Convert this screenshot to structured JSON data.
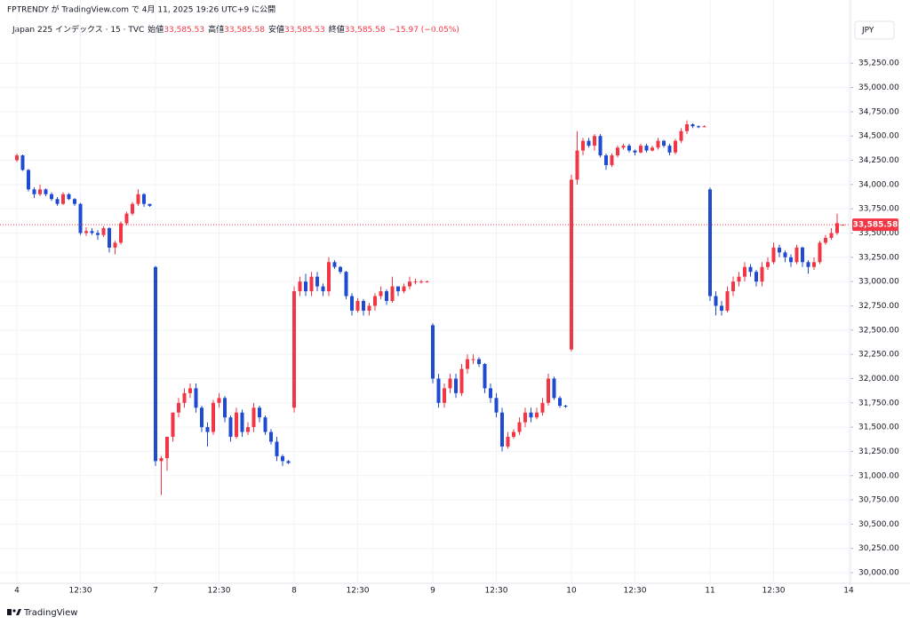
{
  "header": {
    "published": "FPTRENDY が TradingView.com で 4月 11, 2025 19:26 UTC+9 に公開",
    "brand": "TradingView"
  },
  "chart_data": {
    "type": "candlestick",
    "title": "Japan 225 インデックス · 15 · TVC",
    "ohlc": [
      {
        "label": "始値",
        "value": "33,585.53"
      },
      {
        "label": "高値",
        "value": "33,585.58"
      },
      {
        "label": "安値",
        "value": "33,585.53"
      },
      {
        "label": "終値",
        "value": "33,585.58"
      }
    ],
    "change": "−15.97 (−0.05%)",
    "currency": "JPY",
    "up_color": "#f23645",
    "down_color": "#1e4bd2",
    "grid": true,
    "price_line": {
      "value": 33585.58,
      "label": "33,585.58"
    },
    "categories": [
      "4",
      null,
      null,
      null,
      null,
      null,
      null,
      null,
      null,
      null,
      null,
      "12:30",
      null,
      null,
      null,
      null,
      null,
      null,
      null,
      null,
      null,
      null,
      null,
      null,
      "7",
      null,
      null,
      null,
      null,
      null,
      null,
      null,
      null,
      null,
      null,
      "12:30",
      null,
      null,
      null,
      null,
      null,
      null,
      null,
      null,
      null,
      null,
      null,
      null,
      "8",
      null,
      null,
      null,
      null,
      null,
      null,
      null,
      null,
      null,
      null,
      "12:30",
      null,
      null,
      null,
      null,
      null,
      null,
      null,
      null,
      null,
      null,
      null,
      null,
      "9",
      null,
      null,
      null,
      null,
      null,
      null,
      null,
      null,
      null,
      null,
      "12:30",
      null,
      null,
      null,
      null,
      null,
      null,
      null,
      null,
      null,
      null,
      null,
      null,
      "10",
      null,
      null,
      null,
      null,
      null,
      null,
      null,
      null,
      null,
      null,
      "12:30",
      null,
      null,
      null,
      null,
      null,
      null,
      null,
      null,
      null,
      null,
      null,
      null,
      "11",
      null,
      null,
      null,
      null,
      null,
      null,
      null,
      null,
      null,
      null,
      "12:30",
      null,
      null,
      null,
      null,
      null,
      null,
      null,
      null,
      null,
      null,
      null,
      null,
      "14"
    ],
    "open": [
      34250,
      34300,
      34150,
      33950,
      33900,
      33950,
      33900,
      33850,
      33800,
      33900,
      33850,
      33800,
      33500,
      33520,
      33500,
      33480,
      33550,
      33350,
      33400,
      33600,
      33700,
      33800,
      33900,
      33800,
      33150,
      31150,
      31180,
      31400,
      31650,
      31750,
      31850,
      31900,
      31700,
      31500,
      31450,
      31750,
      31800,
      31600,
      31400,
      31650,
      31450,
      31500,
      31700,
      31600,
      31450,
      31350,
      31200,
      31150,
      31700,
      32900,
      33000,
      32900,
      33050,
      32950,
      32900,
      33200,
      33150,
      33100,
      32850,
      32700,
      32800,
      32700,
      32750,
      32850,
      32900,
      32800,
      32950,
      32900,
      32950,
      33000,
      33000,
      33000,
      32550,
      32000,
      31750,
      31900,
      32000,
      31850,
      32100,
      32200,
      32200,
      32150,
      31900,
      31800,
      31650,
      31300,
      31400,
      31450,
      31550,
      31650,
      31600,
      31650,
      31750,
      32000,
      31800,
      31720,
      32300,
      34050,
      34350,
      34450,
      34400,
      34500,
      34300,
      34200,
      34300,
      34380,
      34400,
      34350,
      34330,
      34400,
      34350,
      34380,
      34450,
      34400,
      34330,
      34450,
      34550,
      34620,
      34600,
      34590,
      33950,
      32850,
      32750,
      32700,
      32900,
      33000,
      33050,
      33150,
      33100,
      33000,
      33150,
      33200,
      33350,
      33300,
      33250,
      33200,
      33350,
      33200,
      33150,
      33200,
      33400,
      33450,
      33500,
      33585.53,
      null
    ],
    "high": [
      34320,
      34310,
      34160,
      33970,
      34000,
      33960,
      33920,
      33870,
      33920,
      33910,
      33860,
      33810,
      33560,
      33550,
      33530,
      33570,
      33560,
      33420,
      33620,
      33720,
      33820,
      33950,
      33910,
      33800,
      33160,
      31200,
      31400,
      31650,
      31800,
      31900,
      31950,
      31950,
      31720,
      31550,
      31780,
      31850,
      31820,
      31620,
      31700,
      31680,
      31550,
      31750,
      31720,
      31620,
      31480,
      31400,
      31220,
      31160,
      32950,
      33050,
      33080,
      33100,
      33100,
      32980,
      33250,
      33220,
      33160,
      33110,
      32880,
      32830,
      32820,
      32780,
      32880,
      32950,
      32920,
      33050,
      32950,
      32980,
      33050,
      33030,
      33020,
      33010,
      32570,
      32050,
      31950,
      32050,
      32050,
      32150,
      32250,
      32250,
      32220,
      32160,
      31950,
      31850,
      31700,
      31450,
      31480,
      31600,
      31700,
      31700,
      31700,
      31800,
      32050,
      32020,
      31820,
      31730,
      34100,
      34550,
      34480,
      34480,
      34520,
      34520,
      34320,
      34320,
      34400,
      34420,
      34420,
      34360,
      34420,
      34420,
      34400,
      34480,
      34460,
      34420,
      34470,
      34580,
      34660,
      34630,
      34610,
      34610,
      33970,
      32900,
      32800,
      32950,
      33050,
      33100,
      33200,
      33180,
      33120,
      33200,
      33250,
      33400,
      33380,
      33320,
      33280,
      33380,
      33360,
      33220,
      33250,
      33420,
      33480,
      33550,
      33700,
      33585.58,
      null
    ],
    "low": [
      34230,
      34140,
      33930,
      33860,
      33880,
      33880,
      33830,
      33780,
      33790,
      33840,
      33780,
      33480,
      33470,
      33480,
      33430,
      33460,
      33300,
      33280,
      33380,
      33580,
      33680,
      33780,
      33770,
      33770,
      31100,
      30800,
      31050,
      31350,
      31600,
      31700,
      31800,
      31650,
      31450,
      31300,
      31420,
      31700,
      31550,
      31350,
      31380,
      31400,
      31420,
      31450,
      31550,
      31420,
      31320,
      31150,
      31100,
      31120,
      31650,
      32850,
      32850,
      32850,
      32900,
      32850,
      32850,
      33130,
      33080,
      32820,
      32650,
      32680,
      32650,
      32650,
      32700,
      32820,
      32760,
      32780,
      32850,
      32880,
      32920,
      32970,
      32980,
      32990,
      31950,
      31700,
      31700,
      31850,
      31800,
      31820,
      32050,
      32150,
      32120,
      31850,
      31750,
      31600,
      31250,
      31280,
      31380,
      31420,
      31500,
      31550,
      31580,
      31620,
      31720,
      31780,
      31700,
      31700,
      32280,
      34000,
      34300,
      34380,
      34350,
      34280,
      34150,
      34180,
      34280,
      34360,
      34330,
      34300,
      34320,
      34330,
      34340,
      34360,
      34380,
      34300,
      34310,
      34430,
      34520,
      34580,
      34580,
      34590,
      32800,
      32650,
      32650,
      32680,
      32850,
      32950,
      33000,
      33050,
      32950,
      32950,
      33120,
      33180,
      33250,
      33200,
      33150,
      33180,
      33150,
      33080,
      33120,
      33180,
      33380,
      33430,
      33480,
      33585.53,
      null
    ],
    "close": [
      34300,
      34150,
      33950,
      33900,
      33950,
      33900,
      33850,
      33800,
      33900,
      33850,
      33800,
      33500,
      33520,
      33500,
      33480,
      33550,
      33350,
      33400,
      33600,
      33700,
      33800,
      33900,
      33800,
      33780,
      31150,
      31180,
      31400,
      31650,
      31750,
      31850,
      31900,
      31700,
      31500,
      31450,
      31750,
      31800,
      31600,
      31400,
      31650,
      31450,
      31500,
      31700,
      31600,
      31450,
      31350,
      31200,
      31150,
      31130,
      32900,
      33000,
      32900,
      33050,
      32950,
      32900,
      33200,
      33150,
      33100,
      32850,
      32700,
      32800,
      32700,
      32750,
      32850,
      32900,
      32800,
      32950,
      32900,
      32950,
      33000,
      33000,
      33000,
      33000,
      32000,
      31750,
      31900,
      32000,
      31850,
      32100,
      32200,
      32200,
      32150,
      31900,
      31800,
      31650,
      31300,
      31400,
      31450,
      31550,
      31650,
      31600,
      31650,
      31750,
      32000,
      31800,
      31720,
      31710,
      34050,
      34350,
      34450,
      34400,
      34500,
      34300,
      34200,
      34300,
      34380,
      34400,
      34350,
      34330,
      34400,
      34350,
      34380,
      34450,
      34400,
      34330,
      34450,
      34550,
      34620,
      34600,
      34590,
      34600,
      32850,
      32750,
      32700,
      32900,
      33000,
      33050,
      33150,
      33100,
      33000,
      33150,
      33200,
      33350,
      33300,
      33250,
      33200,
      33350,
      33200,
      33150,
      33200,
      33400,
      33450,
      33500,
      33601.55,
      33585.58,
      null
    ],
    "ylim": [
      29900,
      35700
    ],
    "yticks": [
      {
        "value": 30000,
        "label": "30,000.00"
      },
      {
        "value": 30250,
        "label": "30,250.00"
      },
      {
        "value": 30500,
        "label": "30,500.00"
      },
      {
        "value": 30750,
        "label": "30,750.00"
      },
      {
        "value": 31000,
        "label": "31,000.00"
      },
      {
        "value": 31250,
        "label": "31,250.00"
      },
      {
        "value": 31500,
        "label": "31,500.00"
      },
      {
        "value": 31750,
        "label": "31,750.00"
      },
      {
        "value": 32000,
        "label": "32,000.00"
      },
      {
        "value": 32250,
        "label": "32,250.00"
      },
      {
        "value": 32500,
        "label": "32,500.00"
      },
      {
        "value": 32750,
        "label": "32,750.00"
      },
      {
        "value": 33000,
        "label": "33,000.00"
      },
      {
        "value": 33250,
        "label": "33,250.00"
      },
      {
        "value": 33500,
        "label": "33,500.00"
      },
      {
        "value": 33750,
        "label": "33,750.00"
      },
      {
        "value": 34000,
        "label": "34,000.00"
      },
      {
        "value": 34250,
        "label": "34,250.00"
      },
      {
        "value": 34500,
        "label": "34,500.00"
      },
      {
        "value": 34750,
        "label": "34,750.00"
      },
      {
        "value": 35000,
        "label": "35,000.00"
      },
      {
        "value": 35250,
        "label": "35,250.00"
      }
    ]
  }
}
